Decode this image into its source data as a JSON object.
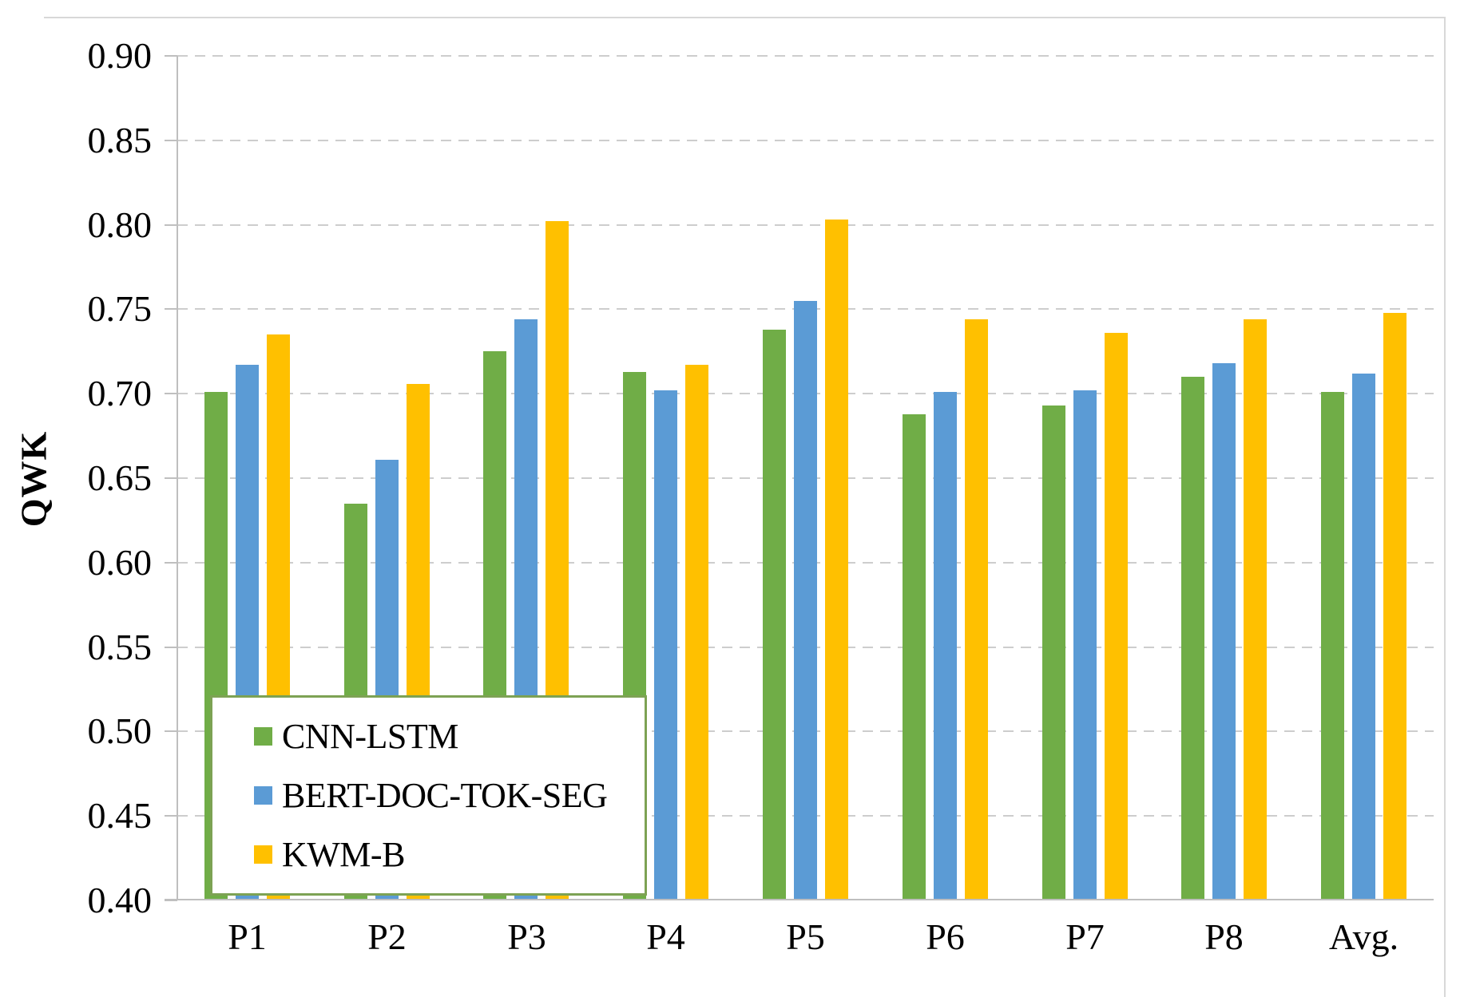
{
  "chart_data": {
    "type": "bar",
    "title": "",
    "xlabel": "",
    "ylabel": "QWK",
    "categories": [
      "P1",
      "P2",
      "P3",
      "P4",
      "P5",
      "P6",
      "P7",
      "P8",
      "Avg."
    ],
    "series": [
      {
        "name": "CNN-LSTM",
        "color": "#70AD47",
        "values": [
          0.701,
          0.635,
          0.725,
          0.713,
          0.738,
          0.688,
          0.693,
          0.71,
          0.701
        ]
      },
      {
        "name": "BERT-DOC-TOK-SEG",
        "color": "#5B9BD5",
        "values": [
          0.717,
          0.661,
          0.744,
          0.702,
          0.755,
          0.701,
          0.702,
          0.718,
          0.712
        ]
      },
      {
        "name": "KWM-B",
        "color": "#FFC000",
        "values": [
          0.735,
          0.706,
          0.802,
          0.717,
          0.803,
          0.744,
          0.736,
          0.744,
          0.748
        ]
      }
    ],
    "ylim": [
      0.4,
      0.9
    ],
    "ytick_step": 0.05,
    "ytick_labels": [
      "0.40",
      "0.45",
      "0.50",
      "0.55",
      "0.60",
      "0.65",
      "0.70",
      "0.75",
      "0.80",
      "0.85",
      "0.90"
    ],
    "grid": "horizontal-dashed",
    "legend_position": "inside-bottom-left"
  },
  "colors": {
    "grid": "#cdcdcd",
    "axis": "#bfbfbf",
    "legend_border": "#7da254",
    "background": "#ffffff",
    "text": "#000000"
  }
}
